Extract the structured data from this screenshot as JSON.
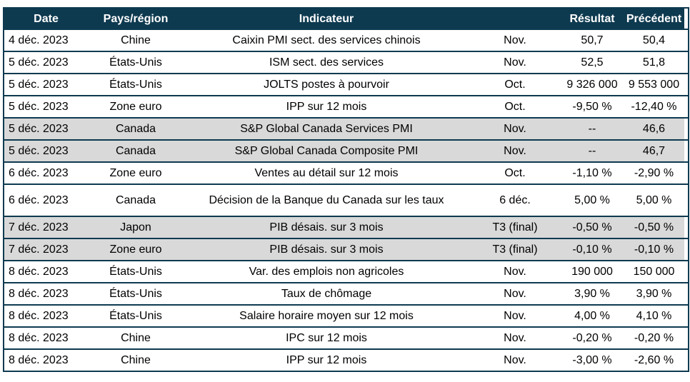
{
  "table": {
    "columns": [
      {
        "key": "date",
        "label": "Date"
      },
      {
        "key": "region",
        "label": "Pays/région"
      },
      {
        "key": "indicator",
        "label": "Indicateur"
      },
      {
        "key": "period",
        "label": ""
      },
      {
        "key": "result",
        "label": "Résultat"
      },
      {
        "key": "previous",
        "label": "Précédent"
      }
    ],
    "rows": [
      {
        "date": "4 déc. 2023",
        "region": "Chine",
        "indicator": "Caixin PMI sect. des services chinois",
        "period": "Nov.",
        "result": "50,7",
        "previous": "50,4",
        "shaded": false
      },
      {
        "date": "5 déc. 2023",
        "region": "États-Unis",
        "indicator": "ISM sect. des services",
        "period": "Nov.",
        "result": "52,5",
        "previous": "51,8",
        "shaded": false
      },
      {
        "date": "5 déc. 2023",
        "region": "États-Unis",
        "indicator": "JOLTS postes à pourvoir",
        "period": "Oct.",
        "result": "9 326 000",
        "previous": "9 553 000",
        "shaded": false
      },
      {
        "date": "5 déc. 2023",
        "region": "Zone euro",
        "indicator": "IPP sur 12 mois",
        "period": "Oct.",
        "result": "-9,50 %",
        "previous": "-12,40 %",
        "shaded": false
      },
      {
        "date": "5 déc. 2023",
        "region": "Canada",
        "indicator": "S&P Global Canada Services PMI",
        "period": "Nov.",
        "result": "--",
        "previous": "46,6",
        "shaded": true
      },
      {
        "date": "5 déc. 2023",
        "region": "Canada",
        "indicator": "S&P Global Canada Composite PMI",
        "period": "Nov.",
        "result": "--",
        "previous": "46,7",
        "shaded": true
      },
      {
        "date": "6 déc. 2023",
        "region": "Zone euro",
        "indicator": "Ventes au détail sur 12 mois",
        "period": "Oct.",
        "result": "-1,10 %",
        "previous": "-2,90 %",
        "shaded": false
      },
      {
        "date": "6 déc. 2023",
        "region": "Canada",
        "indicator": "Décision de la Banque du Canada sur les taux",
        "period": "6 déc.",
        "result": "5,00 %",
        "previous": "5,00 %",
        "shaded": false,
        "tall": true
      },
      {
        "date": "7 déc. 2023",
        "region": "Japon",
        "indicator": "PIB désais. sur 3 mois",
        "period": "T3 (final)",
        "result": "-0,50 %",
        "previous": "-0,50 %",
        "shaded": true
      },
      {
        "date": "7 déc. 2023",
        "region": "Zone euro",
        "indicator": "PIB désais. sur 3 mois",
        "period": "T3 (final)",
        "result": "-0,10 %",
        "previous": "-0,10 %",
        "shaded": true
      },
      {
        "date": "8 déc. 2023",
        "region": "États-Unis",
        "indicator": "Var. des emplois non agricoles",
        "period": "Nov.",
        "result": "190 000",
        "previous": "150 000",
        "shaded": false
      },
      {
        "date": "8 déc. 2023",
        "region": "États-Unis",
        "indicator": "Taux de chômage",
        "period": "Nov.",
        "result": "3,90 %",
        "previous": "3,90 %",
        "shaded": false
      },
      {
        "date": "8 déc. 2023",
        "region": "États-Unis",
        "indicator": "Salaire horaire moyen sur 12 mois",
        "period": "Nov.",
        "result": "4,00 %",
        "previous": "4,10 %",
        "shaded": false
      },
      {
        "date": "8 déc. 2023",
        "region": "Chine",
        "indicator": "IPC sur 12 mois",
        "period": "Nov.",
        "result": "-0,20 %",
        "previous": "-0,20 %",
        "shaded": false
      },
      {
        "date": "8 déc. 2023",
        "region": "Chine",
        "indicator": "IPP sur 12 mois",
        "period": "Nov.",
        "result": "-3,00 %",
        "previous": "-2,60 %",
        "shaded": false
      }
    ]
  },
  "colors": {
    "header_bg": "#0e3a50",
    "header_text": "#ffffff",
    "row_border": "#0e3a50",
    "shaded_row_bg": "#d9d9d9",
    "row_bg": "#ffffff",
    "body_text": "#000000"
  }
}
